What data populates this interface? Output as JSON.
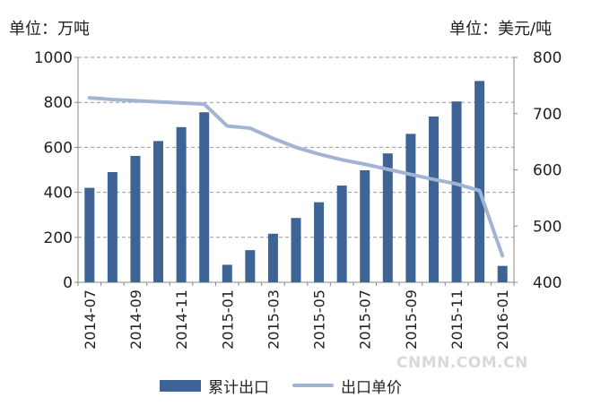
{
  "chart_data": {
    "type": "bar",
    "left_unit_label": "单位：万吨",
    "right_unit_label": "单位：美元/吨",
    "categories": [
      "2014-07",
      "2014-08",
      "2014-09",
      "2014-10",
      "2014-11",
      "2014-12",
      "2015-01",
      "2015-02",
      "2015-03",
      "2015-04",
      "2015-05",
      "2015-06",
      "2015-07",
      "2015-08",
      "2015-09",
      "2015-10",
      "2015-11",
      "2015-12",
      "2016-01"
    ],
    "tick_labels": [
      "2014-07",
      "2014-09",
      "2014-11",
      "2015-01",
      "2015-03",
      "2015-05",
      "2015-07",
      "2015-09",
      "2015-11",
      "2016-01"
    ],
    "y_left": {
      "min": 0,
      "max": 1000,
      "ticks": [
        0,
        200,
        400,
        600,
        800,
        1000
      ]
    },
    "y_right": {
      "min": 400,
      "max": 800,
      "ticks": [
        400,
        500,
        600,
        700,
        800
      ]
    },
    "grid": "dashed horizontal",
    "series": [
      {
        "name": "累计出口",
        "type": "bar",
        "axis": "left",
        "color": "#3d6494",
        "values": [
          420,
          490,
          562,
          628,
          690,
          756,
          78,
          143,
          216,
          286,
          356,
          430,
          498,
          573,
          660,
          737,
          804,
          895,
          73
        ]
      },
      {
        "name": "出口单价",
        "type": "line",
        "axis": "right",
        "color": "#a2b4d4",
        "values": [
          728,
          725,
          723,
          721,
          719,
          717,
          678,
          674,
          656,
          640,
          628,
          618,
          610,
          601,
          592,
          583,
          575,
          563,
          447
        ]
      }
    ]
  },
  "watermark": "CNMN.COM.CN"
}
